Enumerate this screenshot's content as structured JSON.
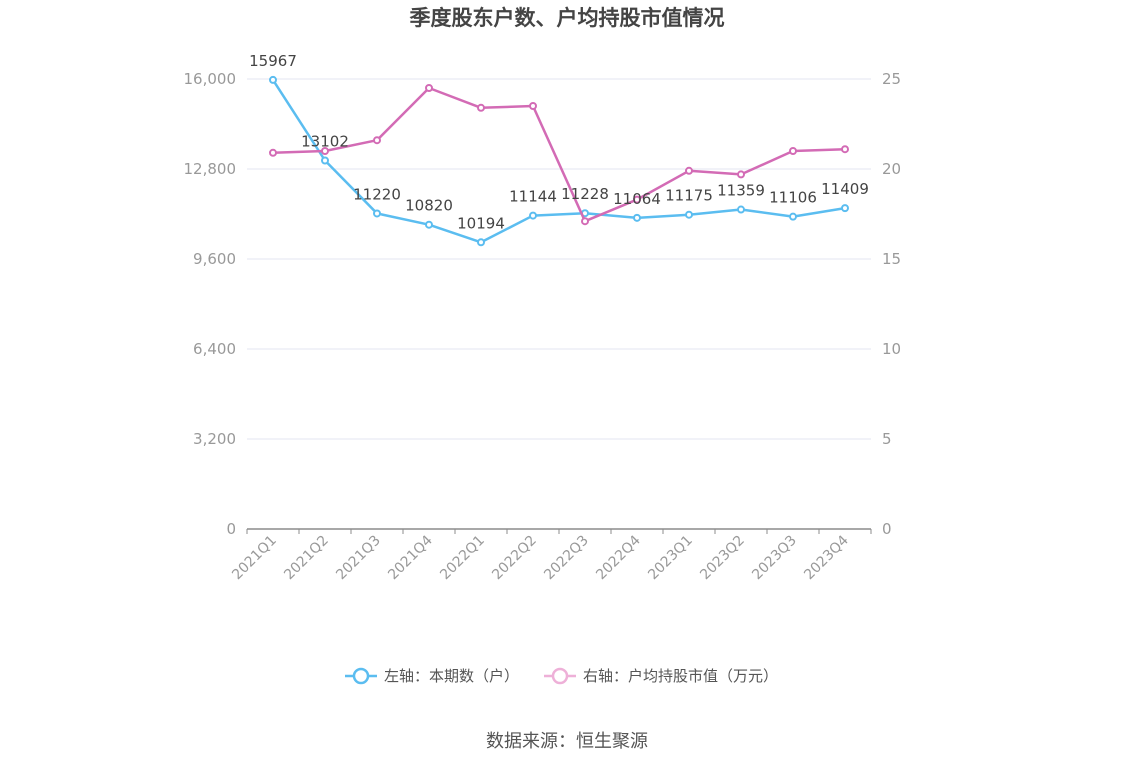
{
  "chart_data": {
    "type": "line",
    "title": "季度股东户数、户均持股市值情况",
    "categories": [
      "2021Q1",
      "2021Q2",
      "2021Q3",
      "2021Q4",
      "2022Q1",
      "2022Q2",
      "2022Q3",
      "2022Q4",
      "2023Q1",
      "2023Q2",
      "2023Q3",
      "2023Q4"
    ],
    "left_axis": {
      "min": 0,
      "max": 16000,
      "ticks": [
        "0",
        "3,200",
        "6,400",
        "9,600",
        "12,800",
        "16,000"
      ]
    },
    "right_axis": {
      "min": 0,
      "max": 25,
      "ticks": [
        "0",
        "5",
        "10",
        "15",
        "20",
        "25"
      ]
    },
    "series": [
      {
        "name": "左轴：本期数（户）",
        "axis": "left",
        "color": "#5bbdf0",
        "values": [
          15967,
          13102,
          11220,
          10820,
          10194,
          11144,
          11228,
          11064,
          11175,
          11359,
          11106,
          11409
        ],
        "labels": [
          "15967",
          "13102",
          "11220",
          "10820",
          "10194",
          "11144",
          "11228",
          "11064",
          "11175",
          "11359",
          "11106",
          "11409"
        ]
      },
      {
        "name": "右轴：户均持股市值（万元）",
        "axis": "right",
        "color": "#d36bb5",
        "values": [
          20.9,
          21.0,
          21.6,
          24.5,
          23.4,
          23.5,
          17.1,
          18.3,
          19.9,
          19.7,
          21.0,
          21.1
        ]
      }
    ],
    "legend_position": "bottom",
    "grid": true
  },
  "source_text": "数据来源：恒生聚源"
}
